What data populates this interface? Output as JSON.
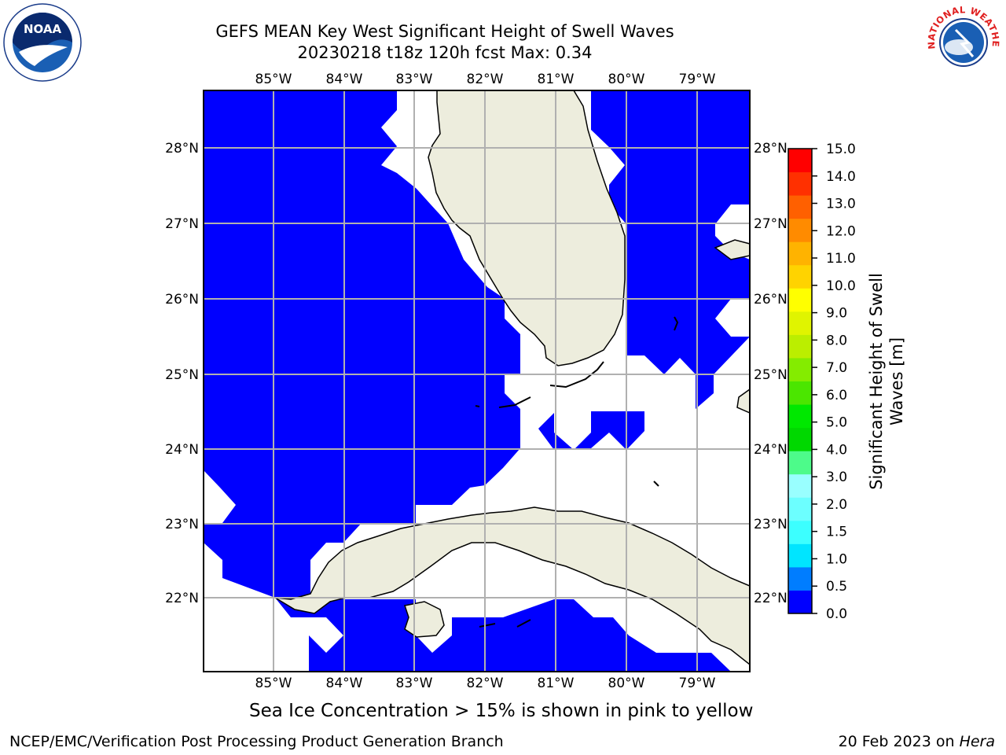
{
  "title": {
    "line1": "GEFS MEAN Key West Significant Height of Swell Waves",
    "line2": "20230218 t18z 120h fcst   Max: 0.34"
  },
  "logos": {
    "left": "NOAA",
    "right": "NATIONAL WEATHER SERVICE"
  },
  "map": {
    "lon_labels": [
      "85°W",
      "84°W",
      "83°W",
      "82°W",
      "81°W",
      "80°W",
      "79°W"
    ],
    "lat_labels": [
      "28°N",
      "27°N",
      "26°N",
      "25°N",
      "24°N",
      "23°N",
      "22°N"
    ],
    "lon_range": [
      -86.0,
      -78.3
    ],
    "lat_range": [
      21.0,
      28.8
    ],
    "ocean_value_color": "#0000ff",
    "land_color": "#ededdd",
    "grid": true
  },
  "colorbar": {
    "label": "Significant Height of Swell Waves [m]",
    "ticks": [
      "15.0",
      "14.0",
      "13.0",
      "12.0",
      "11.0",
      "10.0",
      "9.0",
      "8.0",
      "7.0",
      "6.0",
      "5.0",
      "4.0",
      "3.0",
      "2.0",
      "1.5",
      "1.0",
      "0.5",
      "0.0"
    ],
    "colors_bottom_to_top": [
      "#0000ff",
      "#007dff",
      "#00e5ff",
      "#3cffff",
      "#6cffff",
      "#99ffff",
      "#4dfb8a",
      "#00d800",
      "#00e800",
      "#4be600",
      "#84ec00",
      "#bbee00",
      "#e0f400",
      "#ffff00",
      "#ffd300",
      "#ffb300",
      "#ff8b00",
      "#ff6000",
      "#ff3000",
      "#ff0000"
    ]
  },
  "footnote": "Sea Ice Concentration > 15% is shown in pink to yellow",
  "footer": {
    "left": "NCEP/EMC/Verification Post Processing Product Generation Branch",
    "right_text": "20 Feb 2023 on ",
    "right_italic": "Hera"
  }
}
